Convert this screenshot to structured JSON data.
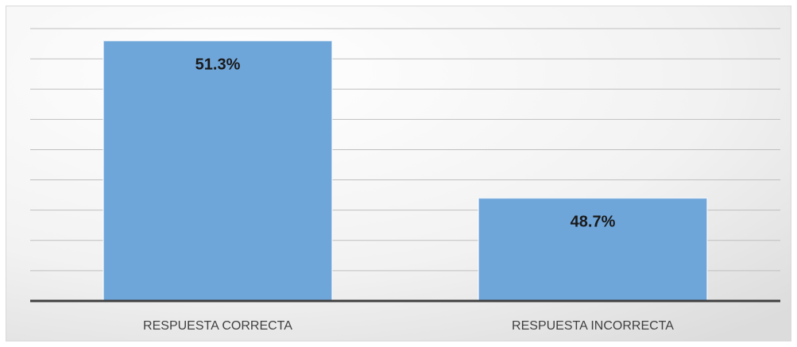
{
  "chart_data": {
    "type": "bar",
    "categories": [
      "RESPUESTA CORRECTA",
      "RESPUESTA INCORRECTA"
    ],
    "values": [
      51.3,
      48.7
    ],
    "value_labels": [
      "51.3%",
      "48.7%"
    ],
    "color": "#6fa6da",
    "ylim": [
      47,
      51.5
    ],
    "yticks": [
      47,
      47.5,
      48,
      48.5,
      49,
      49.5,
      50,
      50.5,
      51,
      51.5
    ],
    "grid": true
  }
}
